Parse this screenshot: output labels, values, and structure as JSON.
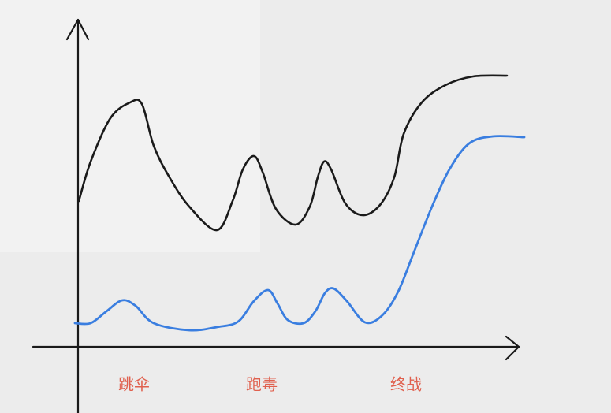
{
  "labels": [
    "跳伞",
    "跑毒",
    "终战"
  ]
}
